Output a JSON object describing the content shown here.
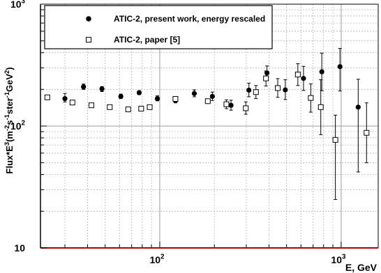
{
  "chart_data": {
    "type": "scatter",
    "xscale": "log",
    "yscale": "log",
    "xlim": [
      22,
      1600
    ],
    "ylim": [
      10,
      1000
    ],
    "grid": true,
    "legend_position": "top-left",
    "xlabel": "E, GeV",
    "ylabel": "Flux*E^3(m^-2 s^-1 ster^-1 GeV^2)",
    "x_tick_labels": [
      {
        "value": 100,
        "base": "10",
        "exp": "2"
      },
      {
        "value": 1000,
        "base": "10",
        "exp": "3"
      }
    ],
    "y_tick_labels": [
      {
        "value": 10,
        "base": "10",
        "exp": ""
      },
      {
        "value": 100,
        "base": "10",
        "exp": "2"
      },
      {
        "value": 1000,
        "base": "10",
        "exp": "3"
      }
    ],
    "series": [
      {
        "name": "ATIC-2, present work, energy rescaled",
        "marker": "filled-circle",
        "color": "#000000",
        "points": [
          {
            "x": 30,
            "y": 168,
            "lo": 158,
            "hi": 185
          },
          {
            "x": 38,
            "y": 210,
            "lo": 200,
            "hi": 221
          },
          {
            "x": 48,
            "y": 202,
            "lo": 192,
            "hi": 211
          },
          {
            "x": 61,
            "y": 175,
            "lo": 168,
            "hi": 183
          },
          {
            "x": 77,
            "y": 188,
            "lo": 181,
            "hi": 195
          },
          {
            "x": 97,
            "y": 168,
            "lo": 161,
            "hi": 177
          },
          {
            "x": 122,
            "y": 162,
            "lo": 155,
            "hi": 172
          },
          {
            "x": 155,
            "y": 185,
            "lo": 174,
            "hi": 198
          },
          {
            "x": 195,
            "y": 175,
            "lo": 162,
            "hi": 190
          },
          {
            "x": 247,
            "y": 148,
            "lo": 135,
            "hi": 163
          },
          {
            "x": 310,
            "y": 197,
            "lo": 174,
            "hi": 225
          },
          {
            "x": 390,
            "y": 273,
            "lo": 240,
            "hi": 311
          },
          {
            "x": 492,
            "y": 198,
            "lo": 165,
            "hi": 240
          },
          {
            "x": 620,
            "y": 246,
            "lo": 196,
            "hi": 309
          },
          {
            "x": 782,
            "y": 279,
            "lo": 195,
            "hi": 397
          },
          {
            "x": 985,
            "y": 307,
            "lo": 194,
            "hi": 433
          },
          {
            "x": 1241,
            "y": 143,
            "lo": 42,
            "hi": 242
          }
        ]
      },
      {
        "name": "ATIC-2, paper [5]",
        "marker": "open-square",
        "color": "#000000",
        "points": [
          {
            "x": 24,
            "y": 172
          },
          {
            "x": 33,
            "y": 156
          },
          {
            "x": 42,
            "y": 148
          },
          {
            "x": 53,
            "y": 143
          },
          {
            "x": 67,
            "y": 137
          },
          {
            "x": 79,
            "y": 139
          },
          {
            "x": 88,
            "y": 143
          },
          {
            "x": 122,
            "y": 167
          },
          {
            "x": 184,
            "y": 160
          },
          {
            "x": 233,
            "y": 151,
            "lo": 139,
            "hi": 164
          },
          {
            "x": 298,
            "y": 140,
            "lo": 125,
            "hi": 158
          },
          {
            "x": 339,
            "y": 190,
            "lo": 168,
            "hi": 215
          },
          {
            "x": 385,
            "y": 246,
            "lo": 213,
            "hi": 283
          },
          {
            "x": 447,
            "y": 205,
            "lo": 172,
            "hi": 245
          },
          {
            "x": 577,
            "y": 265,
            "lo": 215,
            "hi": 325
          },
          {
            "x": 680,
            "y": 170,
            "lo": 130,
            "hi": 222
          },
          {
            "x": 772,
            "y": 143,
            "lo": 85,
            "hi": 240
          },
          {
            "x": 929,
            "y": 77,
            "lo": 25,
            "hi": 123
          },
          {
            "x": 1380,
            "y": 88,
            "lo": 50,
            "hi": 155
          }
        ]
      }
    ]
  }
}
